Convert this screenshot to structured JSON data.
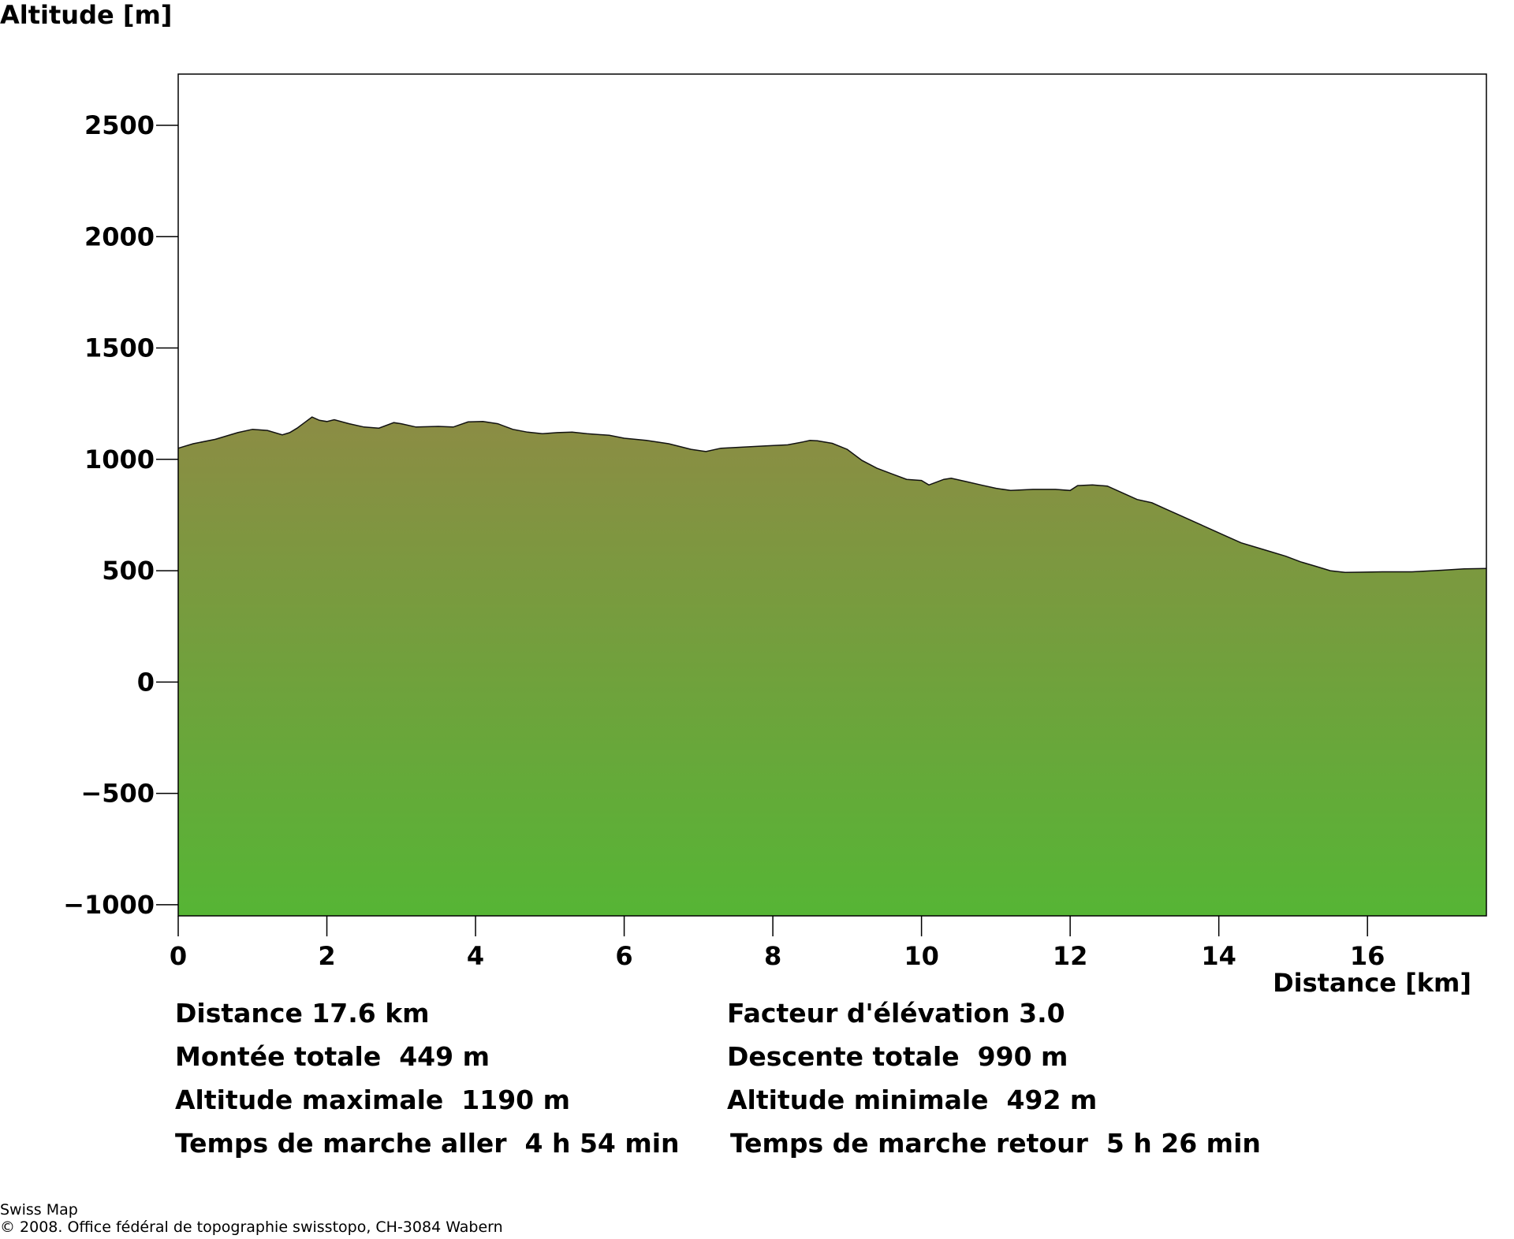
{
  "chart_data": {
    "type": "area",
    "ylabel": "Altitude [m]",
    "xlabel": "Distance [km]",
    "xlim": [
      0,
      17.6
    ],
    "ylim": [
      -1050,
      2730
    ],
    "xticks": [
      0,
      2,
      4,
      6,
      8,
      10,
      12,
      14,
      16
    ],
    "yticks": [
      -1000,
      -500,
      0,
      500,
      1000,
      1500,
      2000,
      2500
    ],
    "grid": false,
    "fill_colors": {
      "top": "#8c8c44",
      "bottom": "#56b535"
    },
    "x": [
      0,
      0.2,
      0.5,
      0.8,
      1.0,
      1.2,
      1.4,
      1.5,
      1.6,
      1.7,
      1.8,
      1.9,
      2.0,
      2.1,
      2.3,
      2.5,
      2.7,
      2.9,
      3.0,
      3.2,
      3.5,
      3.7,
      3.9,
      4.1,
      4.3,
      4.5,
      4.7,
      4.9,
      5.1,
      5.3,
      5.5,
      5.8,
      6.0,
      6.3,
      6.6,
      6.9,
      7.1,
      7.3,
      7.6,
      7.9,
      8.2,
      8.4,
      8.5,
      8.6,
      8.8,
      9.0,
      9.2,
      9.4,
      9.6,
      9.8,
      10.0,
      10.1,
      10.3,
      10.4,
      10.6,
      10.8,
      11.0,
      11.2,
      11.5,
      11.8,
      12.0,
      12.1,
      12.3,
      12.5,
      12.7,
      12.9,
      13.1,
      13.3,
      13.5,
      13.7,
      13.9,
      14.1,
      14.3,
      14.5,
      14.7,
      14.9,
      15.1,
      15.3,
      15.5,
      15.7,
      15.9,
      16.2,
      16.6,
      17.0,
      17.3,
      17.6
    ],
    "y": [
      1050,
      1070,
      1090,
      1120,
      1135,
      1130,
      1110,
      1120,
      1140,
      1165,
      1190,
      1175,
      1170,
      1178,
      1160,
      1145,
      1140,
      1165,
      1160,
      1145,
      1148,
      1145,
      1168,
      1170,
      1160,
      1135,
      1122,
      1115,
      1120,
      1122,
      1115,
      1108,
      1095,
      1085,
      1070,
      1045,
      1035,
      1050,
      1055,
      1060,
      1065,
      1078,
      1085,
      1083,
      1072,
      1045,
      995,
      960,
      935,
      910,
      905,
      885,
      910,
      915,
      900,
      885,
      870,
      860,
      865,
      865,
      860,
      882,
      885,
      880,
      850,
      820,
      805,
      775,
      745,
      715,
      685,
      655,
      625,
      605,
      585,
      565,
      540,
      520,
      500,
      492,
      493,
      495,
      495,
      502,
      508,
      510
    ]
  },
  "stats": {
    "distance": "Distance 17.6 km",
    "facteur": "Facteur d'élévation 3.0",
    "montee": "Montée totale  449 m",
    "descente": "Descente totale  990 m",
    "alt_max": "Altitude maximale  1190 m",
    "alt_min": "Altitude minimale  492 m",
    "temps_aller": "Temps de marche aller  4 h 54 min",
    "temps_retour": "Temps de marche retour  5 h 26 min"
  },
  "credit": {
    "line1": "Swiss Map",
    "line2": "© 2008. Office fédéral de topographie swisstopo, CH-3084 Wabern"
  }
}
